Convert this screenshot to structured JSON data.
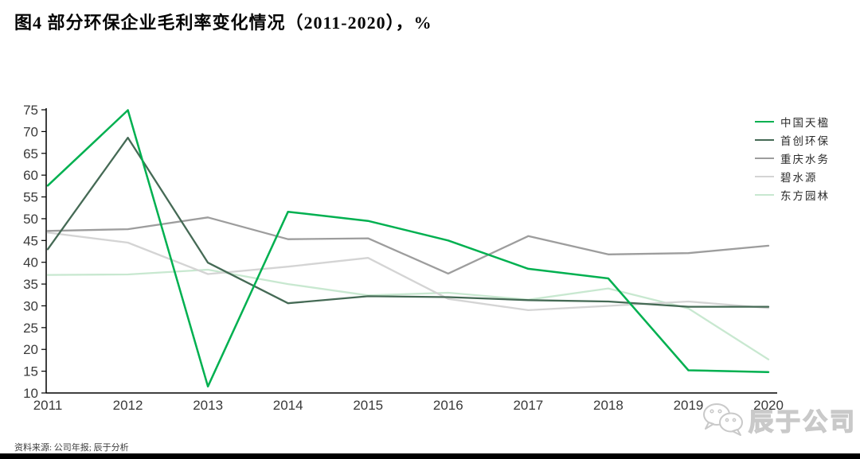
{
  "title": "图4  部分环保企业毛利率变化情况（2011-2020），%",
  "source_note": "资料来源: 公司年报; 辰于分析",
  "watermark": {
    "brand": "辰于公司",
    "icon": "wechat-icon"
  },
  "chart_data": {
    "type": "line",
    "title": "部分环保企业毛利率变化情况（2011-2020），%",
    "unit": "%",
    "categories": [
      "2011",
      "2012",
      "2013",
      "2014",
      "2015",
      "2016",
      "2017",
      "2018",
      "2019",
      "2020"
    ],
    "ylim": [
      10,
      75
    ],
    "ytick_step": 5,
    "grid": false,
    "legend_position": "right",
    "series": [
      {
        "name": "中国天楹",
        "color": "#00B050",
        "width": 2.5,
        "values": [
          57.6,
          74.9,
          11.5,
          51.6,
          49.5,
          45.0,
          38.5,
          36.3,
          15.2,
          14.8
        ]
      },
      {
        "name": "首创环保",
        "color": "#456A55",
        "width": 2.3,
        "values": [
          43.0,
          68.6,
          39.9,
          30.6,
          32.2,
          32.0,
          31.3,
          31.0,
          29.8,
          29.8
        ]
      },
      {
        "name": "重庆水务",
        "color": "#9D9D9D",
        "width": 2.3,
        "values": [
          47.2,
          47.6,
          50.3,
          45.3,
          45.5,
          37.4,
          46.0,
          41.8,
          42.1,
          43.8
        ]
      },
      {
        "name": "碧水源",
        "color": "#D4D4D4",
        "width": 2.3,
        "values": [
          46.8,
          44.5,
          37.3,
          39.0,
          41.0,
          31.6,
          29.0,
          30.0,
          31.0,
          29.5
        ]
      },
      {
        "name": "东方园林",
        "color": "#C8E8D0",
        "width": 2.3,
        "values": [
          37.1,
          37.2,
          38.3,
          35.0,
          32.4,
          33.0,
          31.4,
          34.0,
          29.4,
          17.7
        ]
      }
    ],
    "axis_color": "#000000",
    "tick_label_color": "#3a3a3a"
  }
}
